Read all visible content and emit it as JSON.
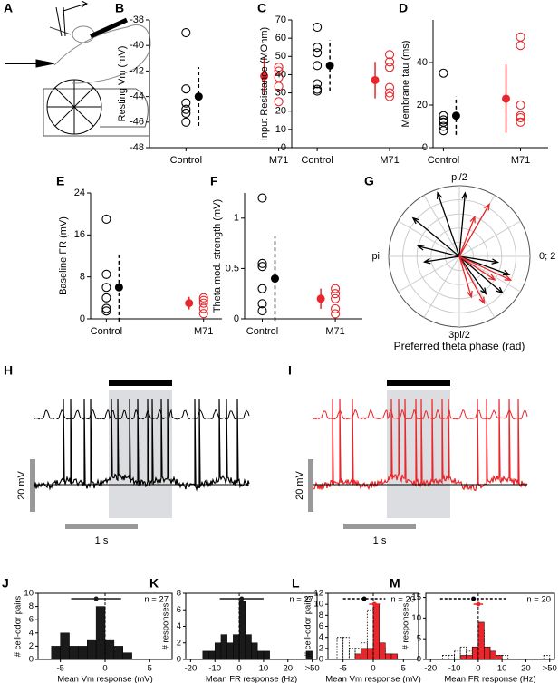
{
  "panels": [
    {
      "letter": "A"
    },
    {
      "letter": "H",
      "scale_y": "20 mV",
      "scale_x": "1 s"
    },
    {
      "letter": "I",
      "scale_y": "20 mV",
      "scale_x": "1 s"
    }
  ],
  "chart_data": [
    {
      "type": "strip",
      "panel": "B",
      "ylabel": "Resting Vm (mV)",
      "categories": [
        "Control",
        "M71"
      ],
      "ylim": [
        -48,
        -38
      ],
      "yticks": [
        -48,
        -46,
        -44,
        -42,
        -40,
        -38
      ],
      "series": [
        {
          "color": "#000000",
          "values": [
            -39,
            -43.4,
            -44.5,
            -45,
            -45.3,
            -46
          ],
          "mean": -44,
          "error": 2.3,
          "error_style": "dashed"
        },
        {
          "color": "#e8262b",
          "values": [
            -41.7,
            -42,
            -42.5,
            -43.2,
            -44.4
          ],
          "mean": -42.4,
          "error": 1.5,
          "error_style": "solid"
        }
      ]
    },
    {
      "type": "strip",
      "panel": "C",
      "ylabel": "Input Resistance (MOhm)",
      "categories": [
        "Control",
        "M71"
      ],
      "ylim": [
        0,
        70
      ],
      "yticks": [
        0,
        10,
        20,
        30,
        40,
        50,
        60,
        70
      ],
      "series": [
        {
          "color": "#000000",
          "values": [
            66,
            55,
            52,
            45,
            35,
            32,
            31
          ],
          "mean": 45,
          "error": 14,
          "error_style": "dashed"
        },
        {
          "color": "#e8262b",
          "values": [
            51,
            47,
            44,
            33,
            30,
            28
          ],
          "mean": 37,
          "error": 10,
          "error_style": "solid"
        }
      ]
    },
    {
      "type": "strip",
      "panel": "D",
      "ylabel": "Membrane tau (ms)",
      "categories": [
        "Control",
        "M71"
      ],
      "ylim": [
        0,
        60
      ],
      "yticks": [
        0,
        20,
        40
      ],
      "series": [
        {
          "color": "#000000",
          "values": [
            35,
            15,
            13,
            12,
            10,
            8
          ],
          "mean": 15,
          "error": 9,
          "error_style": "dashed"
        },
        {
          "color": "#e8262b",
          "values": [
            52,
            48,
            20,
            15,
            14,
            12
          ],
          "mean": 23,
          "error": 16,
          "error_style": "solid"
        }
      ]
    },
    {
      "type": "strip",
      "panel": "E",
      "ylabel": "Baseline FR (mV)",
      "categories": [
        "Control",
        "M71"
      ],
      "ylim": [
        0,
        24
      ],
      "yticks": [
        0,
        8,
        16,
        24
      ],
      "series": [
        {
          "color": "#000000",
          "values": [
            19,
            8.5,
            6,
            4,
            2,
            1.5
          ],
          "mean": 6,
          "error": 6.5,
          "error_style": "dashed"
        },
        {
          "color": "#e8262b",
          "values": [
            4,
            3.5,
            3,
            2,
            1
          ],
          "mean": 3,
          "error": 1.2,
          "error_style": "solid"
        }
      ]
    },
    {
      "type": "strip",
      "panel": "F",
      "ylabel": "Theta mod. strength (mV)",
      "categories": [
        "Control",
        "M71"
      ],
      "ylim": [
        0,
        1.25
      ],
      "yticks": [
        0,
        0.5,
        1
      ],
      "series": [
        {
          "color": "#000000",
          "values": [
            1.2,
            0.55,
            0.52,
            0.3,
            0.15,
            0.08
          ],
          "mean": 0.4,
          "error": 0.42,
          "error_style": "dashed"
        },
        {
          "color": "#e8262b",
          "values": [
            0.3,
            0.25,
            0.2,
            0.1,
            0.05
          ],
          "mean": 0.2,
          "error": 0.1,
          "error_style": "solid"
        }
      ]
    },
    {
      "type": "polar",
      "panel": "G",
      "xlabel": "Preferred theta phase (rad)",
      "angle_labels": [
        {
          "value": 1.5708,
          "label": "pi/2"
        },
        {
          "value": 3.1416,
          "label": "pi"
        },
        {
          "value": 0,
          "label": "0; 2"
        },
        {
          "value": 4.7124,
          "label": "3pi/2"
        }
      ],
      "series": [
        {
          "color": "#000000",
          "angles": [
            1.48,
            1.9,
            2.45,
            2.9,
            3.3,
            6.13,
            5.93,
            5.58,
            5.33
          ],
          "lengths": [
            0.9,
            0.95,
            0.85,
            0.6,
            0.5,
            0.55,
            0.75,
            0.8,
            0.65
          ]
        },
        {
          "color": "#e8262b",
          "angles": [
            1.05,
            1.2,
            5.85,
            5.7,
            5.2,
            5.0
          ],
          "lengths": [
            0.85,
            0.6,
            0.8,
            0.6,
            0.75,
            0.6
          ]
        }
      ]
    },
    {
      "type": "histogram",
      "panel": "J",
      "xlabel": "Mean Vm response (mV)",
      "ylabel": "# cell-odor pairs",
      "annotation": "n = 27",
      "bins": [
        -6,
        -5,
        -4,
        -3,
        -2,
        -1,
        0,
        1,
        2,
        3
      ],
      "xlim": [
        -7.5,
        7.5
      ],
      "xticks": [
        -5,
        0,
        5
      ],
      "ylim": [
        0,
        10
      ],
      "yticks": [
        0,
        2,
        4,
        6,
        8,
        10
      ],
      "reference_x": 0,
      "series": [
        {
          "color": "#1a1a1a",
          "style": "filled",
          "values": [
            2,
            4,
            2,
            2,
            3,
            8,
            3,
            2,
            1
          ],
          "mean": -1,
          "error": 2.8,
          "error_style": "solid"
        }
      ]
    },
    {
      "type": "histogram",
      "panel": "K",
      "xlabel": "Mean FR response (Hz)",
      "ylabel": "# responses",
      "annotation": "n = 27",
      "bins": [
        -15,
        -12.5,
        -10,
        -7.5,
        -5,
        -2.5,
        0,
        2.5,
        5,
        7.5,
        10,
        12.5,
        15,
        17.5,
        20,
        22.5,
        25,
        27.5,
        30
      ],
      "xlim": [
        -22,
        32
      ],
      "xticks": [
        -20,
        -10,
        0,
        10,
        20,
        {
          "value": 30,
          "label": ">50"
        }
      ],
      "ylim": [
        0,
        8
      ],
      "yticks": [
        0,
        2,
        4,
        6,
        8
      ],
      "reference_x": 0,
      "series": [
        {
          "color": "#1a1a1a",
          "style": "filled",
          "values": [
            1,
            1,
            2,
            3,
            2,
            3,
            7,
            3,
            2,
            1,
            1,
            0,
            0,
            0,
            0,
            0,
            0,
            1
          ],
          "mean": 1,
          "error": 9,
          "error_style": "solid"
        }
      ]
    },
    {
      "type": "histogram",
      "panel": "L",
      "xlabel": "Mean Vm response (mV)",
      "ylabel": "# cell-odor pairs",
      "annotation": "n = 20",
      "bins": [
        -6,
        -5,
        -4,
        -3,
        -2,
        -1,
        0,
        1,
        2,
        3,
        4
      ],
      "xlim": [
        -7.5,
        7.5
      ],
      "xticks": [
        -5,
        0,
        5
      ],
      "ylim": [
        0,
        12
      ],
      "yticks": [
        0,
        2,
        4,
        6,
        8,
        10,
        12
      ],
      "reference_x": 0,
      "series": [
        {
          "color": "#000000",
          "style": "dotted",
          "values": [
            4,
            4,
            2,
            2,
            3,
            9,
            3,
            2,
            1,
            0
          ],
          "mean": -1.5,
          "error": 3.5,
          "error_style": "dashed"
        },
        {
          "color": "#e8262b",
          "style": "filled",
          "values": [
            0,
            0,
            0,
            1,
            2,
            2,
            10,
            3,
            1,
            1
          ],
          "mean": 0.2,
          "error": 0.9,
          "error_style": "solid"
        }
      ]
    },
    {
      "type": "histogram",
      "panel": "M",
      "xlabel": "Mean FR response (Hz)",
      "ylabel": "# responses",
      "annotation": "n = 20",
      "bins": [
        -15,
        -12.5,
        -10,
        -7.5,
        -5,
        -2.5,
        0,
        2.5,
        5,
        7.5,
        10,
        12.5,
        15,
        17.5,
        20,
        22.5,
        25,
        27.5,
        30
      ],
      "xlim": [
        -22,
        32
      ],
      "xticks": [
        -20,
        -10,
        0,
        10,
        20,
        {
          "value": 30,
          "label": ">50"
        }
      ],
      "ylim": [
        0,
        16
      ],
      "yticks": [
        0,
        5,
        10,
        15
      ],
      "reference_x": 0,
      "series": [
        {
          "color": "#000000",
          "style": "dotted",
          "values": [
            1,
            1,
            2,
            3,
            2,
            3,
            7,
            3,
            2,
            1,
            1,
            0,
            0,
            0,
            0,
            0,
            0,
            1
          ],
          "mean": -2,
          "error": 14,
          "error_style": "dashed"
        },
        {
          "color": "#e8262b",
          "style": "filled",
          "values": [
            0,
            0,
            0,
            1,
            1,
            3,
            9,
            3,
            2,
            1,
            0,
            0,
            0,
            0,
            0,
            0,
            0,
            0
          ],
          "mean": 0,
          "error": 2,
          "error_style": "solid"
        }
      ]
    }
  ]
}
